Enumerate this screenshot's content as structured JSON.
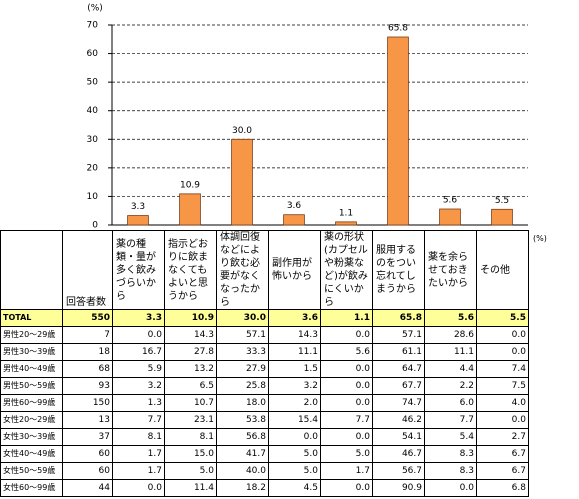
{
  "chart_data": {
    "type": "bar",
    "y_label": "(%)",
    "categories": [
      "薬の種類・量が多く飲みづらいから",
      "指示どおりに飲まなくてもよいと思うから",
      "体調回復などにより飲む必要がなくなったから",
      "副作用が怖いから",
      "薬の形状(カプセルや粉薬など)が飲みにくいから",
      "服用するのをつい忘れてしまうから",
      "薬を余らせておきたいから",
      "その他"
    ],
    "values": [
      3.3,
      10.9,
      30.0,
      3.6,
      1.1,
      65.8,
      5.6,
      5.5
    ],
    "value_labels": [
      "3.3",
      "10.9",
      "30.0",
      "3.6",
      "1.1",
      "65.8",
      "5.6",
      "5.5"
    ],
    "color": "#f79646",
    "ylim": [
      0,
      70
    ],
    "yticks": [
      0,
      10,
      20,
      30,
      40,
      50,
      60,
      70
    ],
    "grid": true
  },
  "table": {
    "unit": "(%)",
    "header_count": "回答者数",
    "rows": [
      [
        "TOTAL",
        "550",
        "3.3",
        "10.9",
        "30.0",
        "3.6",
        "1.1",
        "65.8",
        "5.6",
        "5.5"
      ],
      [
        "男性20～29歳",
        "7",
        "0.0",
        "14.3",
        "57.1",
        "14.3",
        "0.0",
        "57.1",
        "28.6",
        "0.0"
      ],
      [
        "男性30～39歳",
        "18",
        "16.7",
        "27.8",
        "33.3",
        "11.1",
        "5.6",
        "61.1",
        "11.1",
        "0.0"
      ],
      [
        "男性40～49歳",
        "68",
        "5.9",
        "13.2",
        "27.9",
        "1.5",
        "0.0",
        "64.7",
        "4.4",
        "7.4"
      ],
      [
        "男性50～59歳",
        "93",
        "3.2",
        "6.5",
        "25.8",
        "3.2",
        "0.0",
        "67.7",
        "2.2",
        "7.5"
      ],
      [
        "男性60～99歳",
        "150",
        "1.3",
        "10.7",
        "18.0",
        "2.0",
        "0.0",
        "74.7",
        "6.0",
        "4.0"
      ],
      [
        "女性20～29歳",
        "13",
        "7.7",
        "23.1",
        "53.8",
        "15.4",
        "7.7",
        "46.2",
        "7.7",
        "0.0"
      ],
      [
        "女性30～39歳",
        "37",
        "8.1",
        "8.1",
        "56.8",
        "0.0",
        "0.0",
        "54.1",
        "5.4",
        "2.7"
      ],
      [
        "女性40～49歳",
        "60",
        "1.7",
        "15.0",
        "41.7",
        "5.0",
        "5.0",
        "46.7",
        "8.3",
        "6.7"
      ],
      [
        "女性50～59歳",
        "60",
        "1.7",
        "5.0",
        "40.0",
        "5.0",
        "1.7",
        "56.7",
        "8.3",
        "6.7"
      ],
      [
        "女性60～99歳",
        "44",
        "0.0",
        "11.4",
        "18.2",
        "4.5",
        "0.0",
        "90.9",
        "0.0",
        "6.8"
      ]
    ]
  }
}
